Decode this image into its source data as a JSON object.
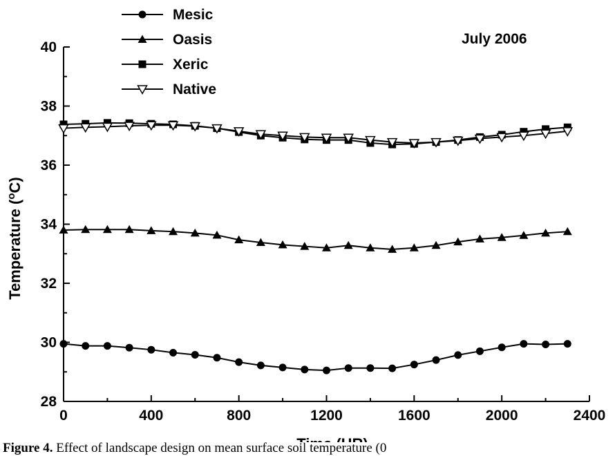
{
  "chart_data": {
    "type": "line",
    "annotation": "July 2006",
    "xlabel": "Time (HR)",
    "ylabel": "Temperature (°C)",
    "ylabel_parts": [
      "Temperature (",
      "o",
      "C)"
    ],
    "xlim": [
      0,
      2400
    ],
    "ylim": [
      28,
      40
    ],
    "xticks": [
      0,
      400,
      800,
      1200,
      1600,
      2000,
      2400
    ],
    "yticks": [
      28,
      30,
      32,
      34,
      36,
      38,
      40
    ],
    "legend_position": "top-left",
    "grid": false,
    "x": [
      0,
      100,
      200,
      300,
      400,
      500,
      600,
      700,
      800,
      900,
      1000,
      1100,
      1200,
      1300,
      1400,
      1500,
      1600,
      1700,
      1800,
      1900,
      2000,
      2100,
      2200,
      2300
    ],
    "series": [
      {
        "name": "Mesic",
        "marker": "circle",
        "values": [
          29.95,
          29.88,
          29.88,
          29.82,
          29.75,
          29.65,
          29.58,
          29.48,
          29.33,
          29.22,
          29.15,
          29.08,
          29.05,
          29.13,
          29.13,
          29.12,
          29.25,
          29.4,
          29.57,
          29.7,
          29.83,
          29.95,
          29.93,
          29.95
        ]
      },
      {
        "name": "Oasis",
        "marker": "triangle-up",
        "values": [
          33.8,
          33.82,
          33.82,
          33.82,
          33.78,
          33.75,
          33.7,
          33.63,
          33.47,
          33.38,
          33.3,
          33.25,
          33.2,
          33.28,
          33.2,
          33.15,
          33.2,
          33.28,
          33.4,
          33.5,
          33.55,
          33.62,
          33.7,
          33.75
        ]
      },
      {
        "name": "Xeric",
        "marker": "square",
        "values": [
          37.38,
          37.4,
          37.43,
          37.42,
          37.4,
          37.38,
          37.33,
          37.25,
          37.12,
          37.0,
          36.93,
          36.87,
          36.85,
          36.85,
          36.75,
          36.7,
          36.72,
          36.78,
          36.85,
          36.95,
          37.03,
          37.13,
          37.22,
          37.28
        ]
      },
      {
        "name": "Native",
        "marker": "triangle-down-open",
        "values": [
          37.25,
          37.28,
          37.3,
          37.33,
          37.35,
          37.35,
          37.32,
          37.25,
          37.15,
          37.05,
          37.0,
          36.95,
          36.93,
          36.93,
          36.85,
          36.78,
          36.75,
          36.78,
          36.83,
          36.9,
          36.95,
          37.0,
          37.07,
          37.15
        ]
      }
    ]
  },
  "caption": {
    "bold": "Figure 4.",
    "rest": " Effect of landscape design on mean surface soil temperature (0"
  }
}
